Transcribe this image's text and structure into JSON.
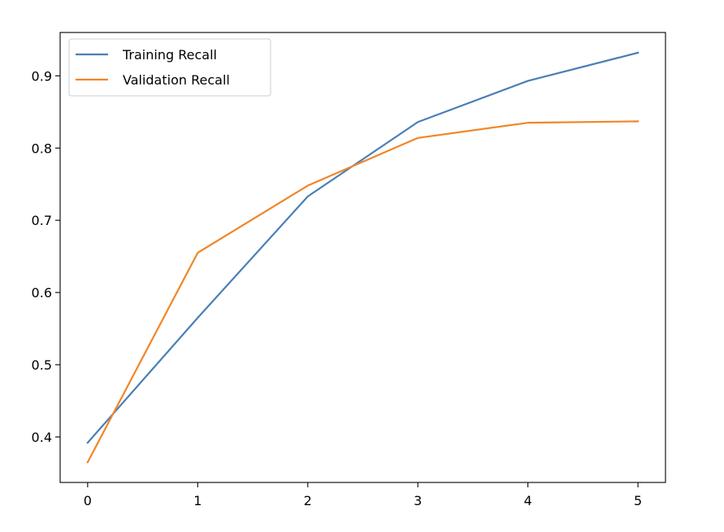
{
  "chart_data": {
    "type": "line",
    "x": [
      0,
      1,
      2,
      3,
      4,
      5
    ],
    "series": [
      {
        "name": "Training Recall",
        "color": "#4a7fb5",
        "values": [
          0.392,
          0.565,
          0.733,
          0.836,
          0.893,
          0.932
        ]
      },
      {
        "name": "Validation Recall",
        "color": "#f08628",
        "values": [
          0.365,
          0.655,
          0.748,
          0.814,
          0.835,
          0.837
        ]
      }
    ],
    "xlim": [
      -0.25,
      5.25
    ],
    "ylim": [
      0.337,
      0.96
    ],
    "xticks": [
      0,
      1,
      2,
      3,
      4,
      5
    ],
    "yticks": [
      0.4,
      0.5,
      0.6,
      0.7,
      0.8,
      0.9
    ],
    "xtick_labels": [
      "0",
      "1",
      "2",
      "3",
      "4",
      "5"
    ],
    "ytick_labels": [
      "0.4",
      "0.5",
      "0.6",
      "0.7",
      "0.8",
      "0.9"
    ],
    "title": "",
    "xlabel": "",
    "ylabel": "",
    "grid": false,
    "legend_position": "top-left"
  }
}
